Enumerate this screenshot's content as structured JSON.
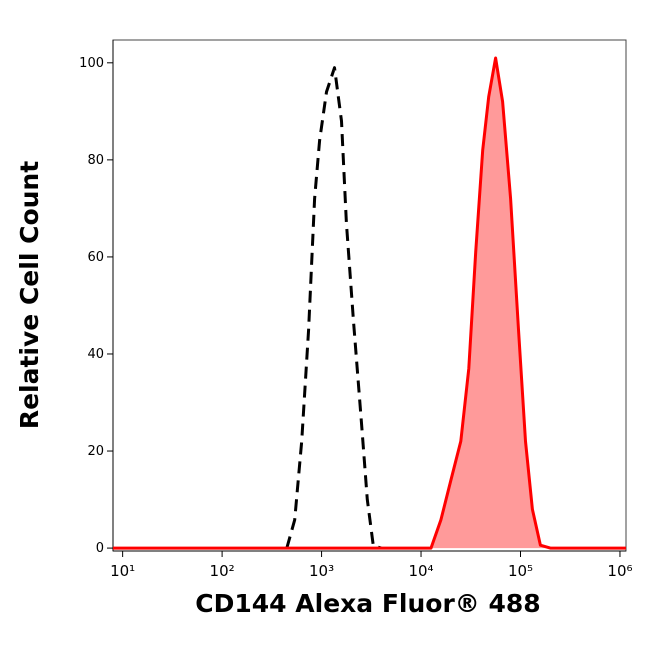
{
  "chart_data": {
    "type": "histogram-overlay",
    "x_label": "CD144 Alexa Fluor® 488",
    "y_label": "Relative Cell Count",
    "xscale": "log",
    "xlim": [
      8,
      1150000
    ],
    "ylim": [
      -0.6,
      104.7
    ],
    "xticks": [
      {
        "value": 10,
        "label": "10¹"
      },
      {
        "value": 100,
        "label": "10²"
      },
      {
        "value": 1000,
        "label": "10³"
      },
      {
        "value": 10000,
        "label": "10⁴"
      },
      {
        "value": 100000,
        "label": "10⁵"
      },
      {
        "value": 1000000,
        "label": "10⁶"
      }
    ],
    "yticks": [
      0,
      20,
      40,
      60,
      80,
      100
    ],
    "series": [
      {
        "color": "#000000",
        "style": "dashed",
        "filled": false,
        "x": [
          447,
          537,
          631,
          741,
          851,
          955,
          1122,
          1349,
          1585,
          1778,
          2089,
          2512,
          2884,
          3311,
          3981
        ],
        "values": [
          0,
          5.8,
          22,
          45,
          72,
          84,
          94,
          99,
          88,
          67,
          47,
          26,
          10,
          0.5,
          0
        ]
      },
      {
        "color": "#ff0000",
        "fill": "#ff9a9a",
        "style": "solid",
        "filled": true,
        "x": [
          8,
          12589,
          15849,
          19953,
          25119,
          30200,
          35481,
          41687,
          47863,
          56234,
          66069,
          79433,
          95499,
          112202,
          131826,
          158489,
          199526,
          1150000
        ],
        "values": [
          0,
          0,
          5.8,
          14,
          22,
          37,
          61,
          82,
          93,
          101,
          92,
          72,
          45,
          22,
          8,
          0.6,
          0,
          0
        ]
      }
    ]
  }
}
